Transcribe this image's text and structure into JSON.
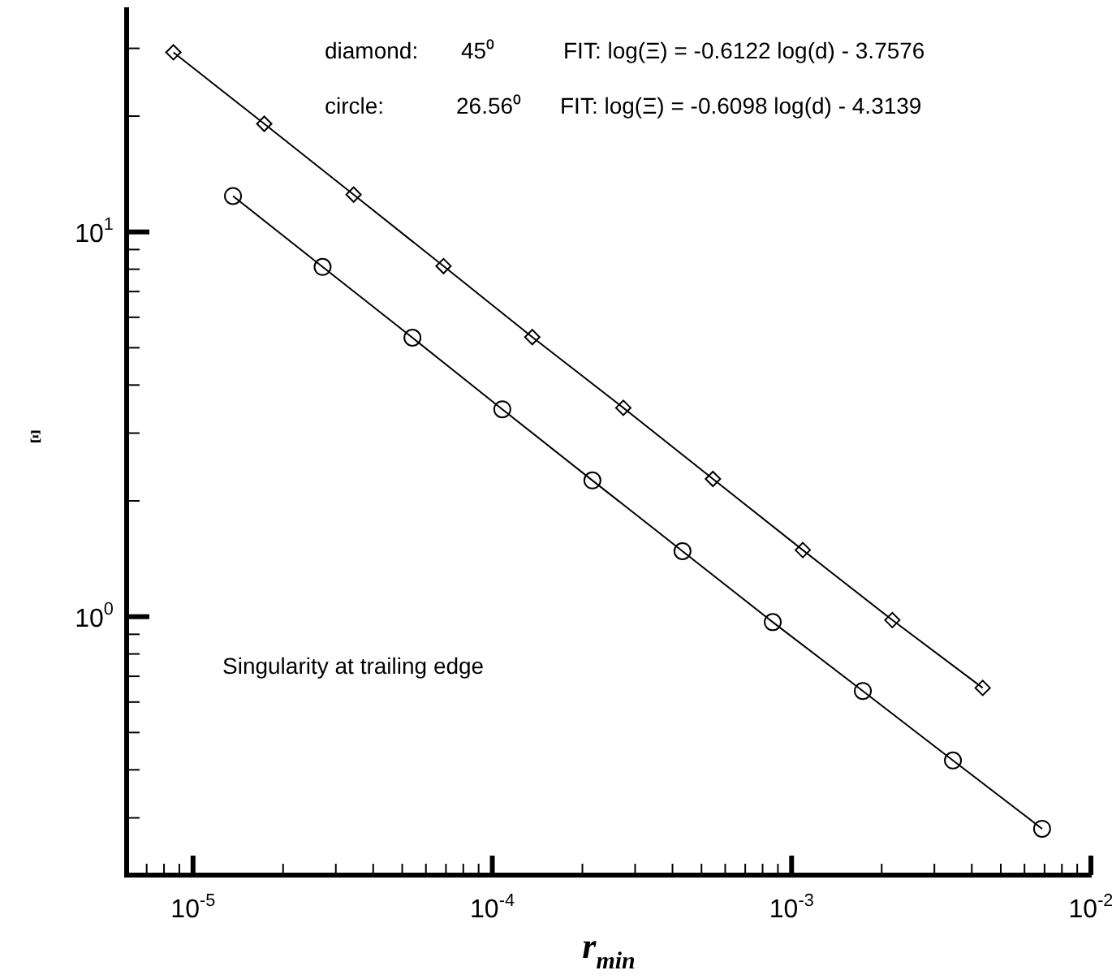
{
  "chart_data": {
    "type": "line",
    "xlabel": "r$_{min}$",
    "ylabel": "Ξ",
    "log": "xy",
    "xlim": [
      6e-06,
      0.01
    ],
    "ylim": [
      0.213,
      37.8
    ],
    "xticks": [
      {
        "value": 7e-06,
        "label": null
      },
      {
        "value": 8e-06,
        "label": null
      },
      {
        "value": 9e-06,
        "label": null
      },
      {
        "value": 1e-05,
        "label": "10$^{-5}$"
      },
      {
        "value": 2e-05,
        "label": null
      },
      {
        "value": 3e-05,
        "label": null
      },
      {
        "value": 4e-05,
        "label": null
      },
      {
        "value": 5e-05,
        "label": null
      },
      {
        "value": 6e-05,
        "label": null
      },
      {
        "value": 7e-05,
        "label": null
      },
      {
        "value": 8e-05,
        "label": null
      },
      {
        "value": 9e-05,
        "label": null
      },
      {
        "value": 0.0001,
        "label": "10$^{-4}$"
      },
      {
        "value": 0.0002,
        "label": null
      },
      {
        "value": 0.0003,
        "label": null
      },
      {
        "value": 0.0004,
        "label": null
      },
      {
        "value": 0.0005,
        "label": null
      },
      {
        "value": 0.0006,
        "label": null
      },
      {
        "value": 0.0007,
        "label": null
      },
      {
        "value": 0.0008,
        "label": null
      },
      {
        "value": 0.0009,
        "label": null
      },
      {
        "value": 0.001,
        "label": "10$^{-3}$"
      },
      {
        "value": 0.002,
        "label": null
      },
      {
        "value": 0.003,
        "label": null
      },
      {
        "value": 0.004,
        "label": null
      },
      {
        "value": 0.005,
        "label": null
      },
      {
        "value": 0.006,
        "label": null
      },
      {
        "value": 0.007,
        "label": null
      },
      {
        "value": 0.008,
        "label": null
      },
      {
        "value": 0.009,
        "label": null
      },
      {
        "value": 0.01,
        "label": "10$^{-2}$"
      }
    ],
    "yticks": [
      {
        "value": 0.3,
        "label": null
      },
      {
        "value": 0.4,
        "label": null
      },
      {
        "value": 0.5,
        "label": null
      },
      {
        "value": 0.6,
        "label": null
      },
      {
        "value": 0.7,
        "label": null
      },
      {
        "value": 0.8,
        "label": null
      },
      {
        "value": 0.9,
        "label": null
      },
      {
        "value": 1,
        "label": "10$^{0}$"
      },
      {
        "value": 2,
        "label": null
      },
      {
        "value": 3,
        "label": null
      },
      {
        "value": 4,
        "label": null
      },
      {
        "value": 5,
        "label": null
      },
      {
        "value": 6,
        "label": null
      },
      {
        "value": 7,
        "label": null
      },
      {
        "value": 8,
        "label": null
      },
      {
        "value": 9,
        "label": null
      },
      {
        "value": 10,
        "label": "10$^{1}$"
      },
      {
        "value": 20,
        "label": null
      },
      {
        "value": 30,
        "label": null
      }
    ],
    "series": [
      {
        "color": "#000000",
        "marker": "diamond",
        "x": [
          8.6e-06,
          1.73e-05,
          3.44e-05,
          6.87e-05,
          0.000136,
          0.000274,
          0.000546,
          0.00109,
          0.00217,
          0.00435
        ],
        "values": [
          29.3,
          19.1,
          12.5,
          8.15,
          5.33,
          3.49,
          2.28,
          1.49,
          0.98,
          0.653
        ]
      },
      {
        "color": "#000000",
        "marker": "circle",
        "x": [
          1.36e-05,
          2.71e-05,
          5.41e-05,
          0.000108,
          0.000216,
          0.000432,
          0.000865,
          0.00173,
          0.00346,
          0.00687
        ],
        "values": [
          12.4,
          8.11,
          5.31,
          3.46,
          2.26,
          1.48,
          0.968,
          0.641,
          0.423,
          0.281
        ]
      }
    ],
    "annotations": [
      "diamond:",
      "45⁰",
      "FIT: log(Ξ) = -0.6122 log(d) - 3.7576",
      "circle:",
      "26.56⁰",
      "FIT: log(Ξ) = -0.6098 log(d) - 4.3139",
      "Singularity at trailing edge"
    ]
  }
}
